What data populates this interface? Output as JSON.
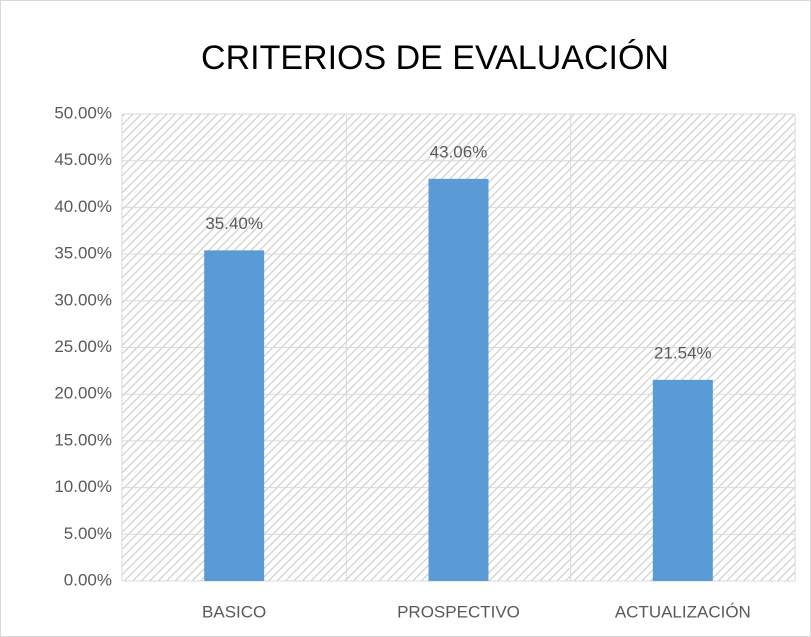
{
  "chart_data": {
    "type": "bar",
    "title": "CRITERIOS DE EVALUACIÓN",
    "categories": [
      "BASICO",
      "PROSPECTIVO",
      "ACTUALIZACIÓN"
    ],
    "values": [
      35.4,
      43.06,
      21.54
    ],
    "value_labels": [
      "35.40%",
      "43.06%",
      "21.54%"
    ],
    "color": "#5b9bd5",
    "ylim": [
      0,
      50
    ],
    "yticks": [
      {
        "value": 0,
        "label": "0.00%"
      },
      {
        "value": 5,
        "label": "5.00%"
      },
      {
        "value": 10,
        "label": "10.00%"
      },
      {
        "value": 15,
        "label": "15.00%"
      },
      {
        "value": 20,
        "label": "20.00%"
      },
      {
        "value": 25,
        "label": "25.00%"
      },
      {
        "value": 30,
        "label": "30.00%"
      },
      {
        "value": 35,
        "label": "35.00%"
      },
      {
        "value": 40,
        "label": "40.00%"
      },
      {
        "value": 45,
        "label": "45.00%"
      },
      {
        "value": 50,
        "label": "50.00%"
      }
    ],
    "grid": true
  }
}
